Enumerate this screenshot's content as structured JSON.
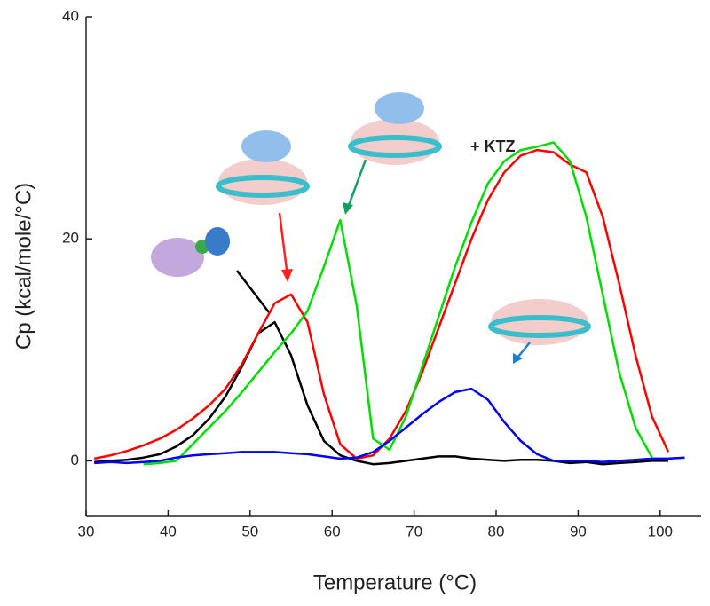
{
  "chart_data": {
    "type": "line",
    "xlabel": "Temperature (°C)",
    "ylabel": "Cp (kcal/mole/°C)",
    "annotation": "+ KTZ",
    "x": [
      31,
      33,
      35,
      37,
      39,
      41,
      43,
      45,
      47,
      49,
      51,
      53,
      55,
      57,
      59,
      61,
      63,
      65,
      67,
      69,
      71,
      73,
      75,
      77,
      79,
      81,
      83,
      85,
      87,
      89,
      91,
      93,
      95,
      97,
      99,
      101,
      103
    ],
    "series": [
      {
        "color": "#000000",
        "values": [
          -0.1,
          0,
          0.1,
          0.3,
          0.6,
          1.3,
          2.3,
          3.8,
          5.8,
          8.5,
          11.5,
          12.5,
          9.5,
          5,
          1.8,
          0.5,
          0,
          -0.3,
          -0.2,
          0,
          0.2,
          0.4,
          0.4,
          0.2,
          0.1,
          0,
          0.1,
          0.1,
          0,
          -0.2,
          -0.1,
          -0.3,
          -0.2,
          -0.1,
          0,
          0,
          null
        ]
      },
      {
        "color": "#ff0000",
        "values": [
          0.2,
          0.5,
          0.9,
          1.4,
          2,
          2.8,
          3.8,
          5,
          6.5,
          8.7,
          11.5,
          14.2,
          15,
          12.5,
          6,
          1.5,
          0.2,
          0.5,
          2,
          4.5,
          8,
          12,
          16,
          20,
          23.5,
          26,
          27.5,
          28,
          27.8,
          26.7,
          26,
          22,
          16,
          9.5,
          4,
          0.8,
          null
        ]
      },
      {
        "color": "#00e000",
        "values": [
          null,
          null,
          null,
          -0.3,
          -0.2,
          0,
          1.5,
          3,
          4.5,
          6.2,
          8,
          9.8,
          11.5,
          13.5,
          17.5,
          21.7,
          14,
          2,
          1,
          4,
          8.5,
          13,
          17.5,
          21.5,
          25,
          27,
          28,
          28.3,
          28.7,
          27,
          22,
          15,
          8,
          3,
          0.3,
          null,
          null
        ]
      },
      {
        "color": "#0000ff",
        "values": [
          -0.2,
          -0.1,
          -0.2,
          -0.1,
          0,
          0.3,
          0.5,
          0.6,
          0.7,
          0.8,
          0.8,
          0.8,
          0.7,
          0.6,
          0.4,
          0.2,
          0.3,
          0.8,
          1.8,
          3,
          4.2,
          5.3,
          6.2,
          6.5,
          5.5,
          3.5,
          1.8,
          0.6,
          0,
          0,
          0,
          -0.1,
          0,
          0.1,
          0.2,
          0.2,
          0.3
        ]
      }
    ],
    "xlim": [
      30,
      105
    ],
    "xticks": [
      30,
      40,
      50,
      60,
      70,
      80,
      90,
      100
    ],
    "ylim": [
      -5,
      40
    ],
    "yticks": [
      0,
      20,
      40
    ]
  }
}
